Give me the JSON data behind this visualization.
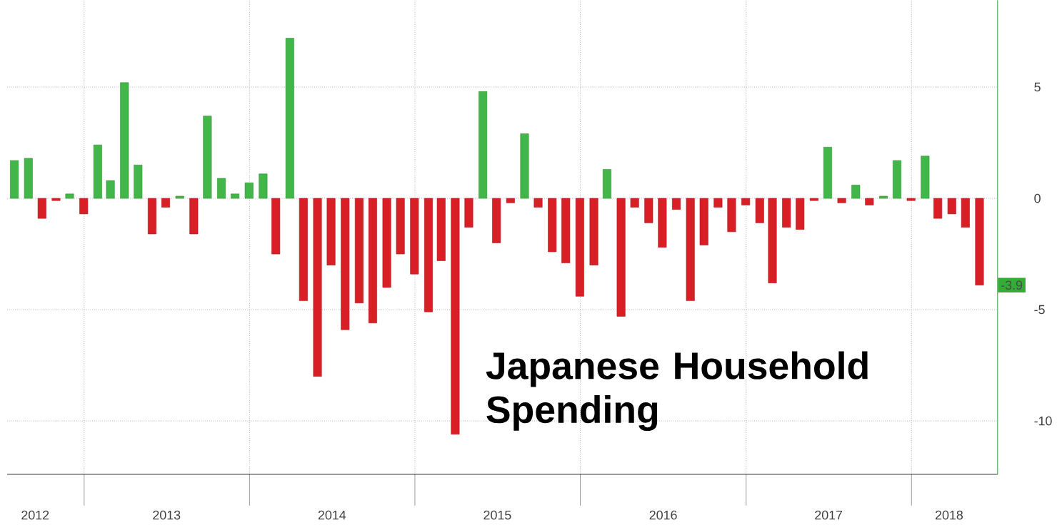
{
  "chart_data": {
    "type": "bar",
    "title": "Japanese Household Spending",
    "x": [
      "2012-07-31",
      "2012-08-31",
      "2012-09-30",
      "2012-10-31",
      "2012-11-30",
      "2012-12-31",
      "2013-01-31",
      "2013-02-28",
      "2013-03-31",
      "2013-04-30",
      "2013-05-31",
      "2013-06-30",
      "2013-07-31",
      "2013-08-31",
      "2013-09-30",
      "2013-10-31",
      "2013-11-30",
      "2013-12-31",
      "2014-01-31",
      "2014-02-28",
      "2014-03-31",
      "2014-04-30",
      "2014-05-31",
      "2014-06-30",
      "2014-07-31",
      "2014-08-31",
      "2014-09-30",
      "2014-10-31",
      "2014-11-30",
      "2014-12-31",
      "2015-01-31",
      "2015-02-28",
      "2015-03-31",
      "2015-04-30",
      "2015-05-31",
      "2015-06-30",
      "2015-07-31",
      "2015-08-31",
      "2015-09-30",
      "2015-10-31",
      "2015-11-30",
      "2015-12-31",
      "2016-01-31",
      "2016-02-29",
      "2016-03-31",
      "2016-04-30",
      "2016-05-31",
      "2016-06-30",
      "2016-07-31",
      "2016-08-31",
      "2016-09-30",
      "2016-10-31",
      "2016-11-30",
      "2016-12-31",
      "2017-01-31",
      "2017-02-28",
      "2017-03-31",
      "2017-04-30",
      "2017-05-31",
      "2017-06-30",
      "2017-07-31",
      "2017-08-31",
      "2017-09-30",
      "2017-10-31",
      "2017-11-30",
      "2017-12-31",
      "2018-01-31",
      "2018-02-28",
      "2018-03-31",
      "2018-04-30",
      "2018-05-31"
    ],
    "values": [
      1.7,
      1.8,
      -0.9,
      -0.1,
      0.2,
      -0.7,
      2.4,
      0.8,
      5.2,
      1.5,
      -1.6,
      -0.4,
      0.1,
      -1.6,
      3.7,
      0.9,
      0.2,
      0.7,
      1.1,
      -2.5,
      7.2,
      -4.6,
      -8.0,
      -3.0,
      -5.9,
      -4.7,
      -5.6,
      -4.0,
      -2.5,
      -3.4,
      -5.1,
      -2.8,
      -10.6,
      -1.3,
      4.8,
      -2.0,
      -0.2,
      2.9,
      -0.4,
      -2.4,
      -2.9,
      -4.4,
      -3.0,
      1.3,
      -5.3,
      -0.4,
      -1.1,
      -2.2,
      -0.5,
      -4.6,
      -2.1,
      -0.4,
      -1.5,
      -0.3,
      -1.1,
      -3.8,
      -1.3,
      -1.4,
      -0.1,
      2.3,
      -0.2,
      0.6,
      -0.3,
      0.1,
      1.7,
      -0.1,
      1.9,
      -0.9,
      -0.7,
      -1.3,
      -3.9
    ],
    "colors": [
      "#43b649",
      "#43b649",
      "#d81f26",
      "#d81f26",
      "#43b649",
      "#d81f26",
      "#43b649",
      "#43b649",
      "#43b649",
      "#43b649",
      "#d81f26",
      "#d81f26",
      "#43b649",
      "#d81f26",
      "#43b649",
      "#43b649",
      "#43b649",
      "#43b649",
      "#43b649",
      "#d81f26",
      "#43b649",
      "#d81f26",
      "#d81f26",
      "#d81f26",
      "#d81f26",
      "#d81f26",
      "#d81f26",
      "#d81f26",
      "#d81f26",
      "#d81f26",
      "#d81f26",
      "#d81f26",
      "#d81f26",
      "#d81f26",
      "#43b649",
      "#d81f26",
      "#d81f26",
      "#43b649",
      "#d81f26",
      "#d81f26",
      "#d81f26",
      "#d81f26",
      "#d81f26",
      "#43b649",
      "#d81f26",
      "#d81f26",
      "#d81f26",
      "#d81f26",
      "#d81f26",
      "#d81f26",
      "#d81f26",
      "#d81f26",
      "#d81f26",
      "#d81f26",
      "#d81f26",
      "#d81f26",
      "#d81f26",
      "#d81f26",
      "#d81f26",
      "#43b649",
      "#d81f26",
      "#43b649",
      "#d81f26",
      "#43b649",
      "#43b649",
      "#d81f26",
      "#43b649",
      "#d81f26",
      "#d81f26",
      "#d81f26",
      "#d81f26"
    ],
    "xlim": [
      "2012-07-15",
      "2018-07-10"
    ],
    "xticks": [
      {
        "value": "2012-09-15",
        "label": "2012"
      },
      {
        "value": "2013-01-01",
        "label": null
      },
      {
        "value": "2013-07-02",
        "label": "2013"
      },
      {
        "value": "2014-01-01",
        "label": null
      },
      {
        "value": "2014-07-02",
        "label": "2014"
      },
      {
        "value": "2015-01-01",
        "label": null
      },
      {
        "value": "2015-07-02",
        "label": "2015"
      },
      {
        "value": "2016-01-01",
        "label": null
      },
      {
        "value": "2016-07-02",
        "label": "2016"
      },
      {
        "value": "2017-01-01",
        "label": null
      },
      {
        "value": "2017-07-02",
        "label": "2017"
      },
      {
        "value": "2018-01-01",
        "label": null
      },
      {
        "value": "2018-03-25",
        "label": "2018"
      }
    ],
    "ylim": [
      -12.4,
      8.9
    ],
    "yticks": [
      -10,
      -5,
      0,
      5
    ],
    "grid": true,
    "annotations": [
      {
        "text": "-3.9",
        "x": "2018-05-31",
        "y": -3.9
      }
    ]
  }
}
